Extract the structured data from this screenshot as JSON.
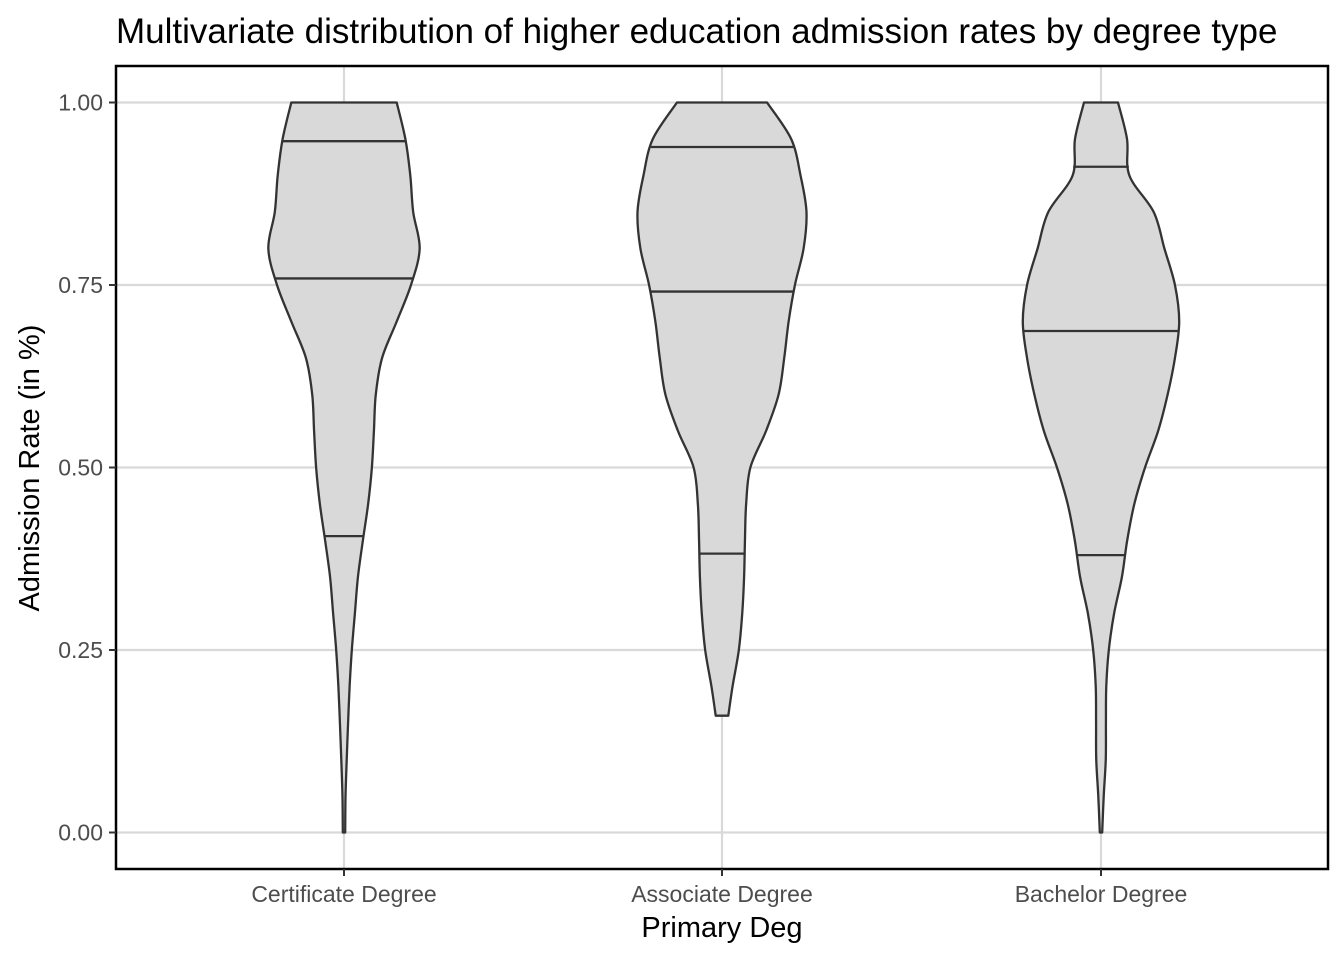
{
  "chart_data": {
    "type": "violin",
    "title": "Multivariate distribution of higher education admission rates by degree type",
    "xlabel": "Primary Deg",
    "ylabel": "Admission Rate (in %)",
    "ylim": [
      -0.05,
      1.05
    ],
    "yticks": [
      0.0,
      0.25,
      0.5,
      0.75,
      1.0
    ],
    "ytick_labels": [
      "0.00",
      "0.25",
      "0.50",
      "0.75",
      "1.00"
    ],
    "grid": true,
    "categories": [
      "Certificate Degree",
      "Associate Degree",
      "Bachelor Degree"
    ],
    "colors": {
      "fill": "#d9d9d9",
      "outline": "#333333",
      "grid": "#d9d9d9"
    },
    "violins": [
      {
        "category": "Certificate Degree",
        "quantiles": [
          0.406,
          0.759,
          0.947
        ],
        "density": [
          [
            0.0,
            0.007
          ],
          [
            0.05,
            0.009
          ],
          [
            0.1,
            0.016
          ],
          [
            0.15,
            0.024
          ],
          [
            0.2,
            0.033
          ],
          [
            0.25,
            0.046
          ],
          [
            0.3,
            0.064
          ],
          [
            0.35,
            0.082
          ],
          [
            0.4,
            0.111
          ],
          [
            0.45,
            0.142
          ],
          [
            0.5,
            0.164
          ],
          [
            0.55,
            0.176
          ],
          [
            0.6,
            0.187
          ],
          [
            0.65,
            0.224
          ],
          [
            0.7,
            0.31
          ],
          [
            0.75,
            0.394
          ],
          [
            0.8,
            0.445
          ],
          [
            0.85,
            0.407
          ],
          [
            0.9,
            0.39
          ],
          [
            0.95,
            0.361
          ],
          [
            1.0,
            0.31
          ]
        ]
      },
      {
        "category": "Associate Degree",
        "quantiles": [
          0.382,
          0.741,
          0.939
        ],
        "density": [
          [
            0.16,
            0.037
          ],
          [
            0.2,
            0.062
          ],
          [
            0.25,
            0.099
          ],
          [
            0.3,
            0.119
          ],
          [
            0.35,
            0.13
          ],
          [
            0.4,
            0.135
          ],
          [
            0.45,
            0.142
          ],
          [
            0.5,
            0.167
          ],
          [
            0.55,
            0.259
          ],
          [
            0.6,
            0.333
          ],
          [
            0.65,
            0.366
          ],
          [
            0.7,
            0.392
          ],
          [
            0.75,
            0.429
          ],
          [
            0.8,
            0.48
          ],
          [
            0.85,
            0.497
          ],
          [
            0.9,
            0.462
          ],
          [
            0.95,
            0.407
          ],
          [
            1.0,
            0.265
          ]
        ]
      },
      {
        "category": "Bachelor Degree",
        "quantiles": [
          0.38,
          0.687,
          0.912
        ],
        "density": [
          [
            0.0,
            0.007
          ],
          [
            0.05,
            0.016
          ],
          [
            0.1,
            0.028
          ],
          [
            0.15,
            0.029
          ],
          [
            0.2,
            0.031
          ],
          [
            0.25,
            0.046
          ],
          [
            0.3,
            0.077
          ],
          [
            0.35,
            0.123
          ],
          [
            0.4,
            0.154
          ],
          [
            0.45,
            0.196
          ],
          [
            0.5,
            0.259
          ],
          [
            0.55,
            0.336
          ],
          [
            0.6,
            0.392
          ],
          [
            0.65,
            0.435
          ],
          [
            0.7,
            0.46
          ],
          [
            0.75,
            0.435
          ],
          [
            0.8,
            0.373
          ],
          [
            0.85,
            0.31
          ],
          [
            0.9,
            0.167
          ],
          [
            0.95,
            0.153
          ],
          [
            1.0,
            0.1
          ]
        ]
      }
    ]
  }
}
